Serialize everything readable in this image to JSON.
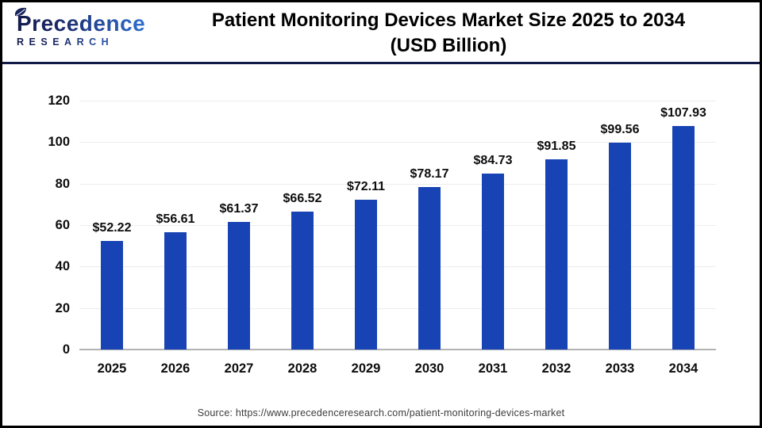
{
  "header": {
    "logo_line1": "Precedence",
    "logo_line2": "RESEARCH",
    "title_line1": "Patient Monitoring Devices Market Size 2025 to 2034",
    "title_line2": "(USD Billion)"
  },
  "chart_data": {
    "type": "bar",
    "title": "Patient Monitoring Devices Market Size 2025 to 2034 (USD Billion)",
    "categories": [
      "2025",
      "2026",
      "2027",
      "2028",
      "2029",
      "2030",
      "2031",
      "2032",
      "2033",
      "2034"
    ],
    "values": [
      52.22,
      56.61,
      61.37,
      66.52,
      72.11,
      78.17,
      84.73,
      91.85,
      99.56,
      107.93
    ],
    "bar_labels": [
      "$52.22",
      "$56.61",
      "$61.37",
      "$66.52",
      "$72.11",
      "$78.17",
      "$84.73",
      "$91.85",
      "$99.56",
      "$107.93"
    ],
    "xlabel": "",
    "ylabel": "",
    "ylim": [
      0,
      120
    ],
    "yticks": [
      0,
      20,
      40,
      60,
      80,
      100,
      120
    ],
    "grid": true,
    "legend_position": "none",
    "bar_color": "#1843b4"
  },
  "colors": {
    "bar": "#1843b4",
    "header_rule": "#121a47",
    "logo_gradient_dark": "#141b4d",
    "logo_gradient_light": "#2f6fd0",
    "gridline": "#ededed",
    "axis_line": "#b3b3b3",
    "title_text": "#000000",
    "source_text": "#3d3d3d"
  },
  "footer": {
    "source": "Source: https://www.precedenceresearch.com/patient-monitoring-devices-market"
  }
}
